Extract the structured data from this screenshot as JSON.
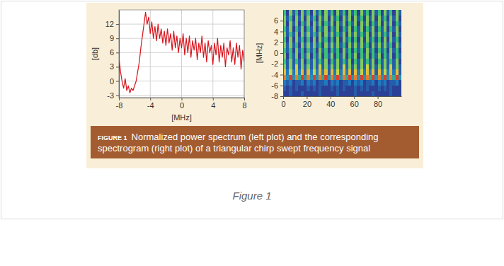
{
  "chart_data": [
    {
      "type": "line",
      "x_label": "[MHz]",
      "y_label": "[db]",
      "color": "#d7141c",
      "grid": true,
      "xlim": [
        -8,
        8
      ],
      "ylim": [
        -3.5,
        15
      ],
      "xticks": [
        -8,
        -4,
        0,
        4,
        8
      ],
      "yticks": [
        -3,
        0,
        3,
        6,
        9,
        12
      ],
      "x": [
        -8,
        -7.8,
        -7.6,
        -7.4,
        -7.2,
        -7,
        -6.8,
        -6.6,
        -6.4,
        -6.2,
        -6,
        -5.8,
        -5.6,
        -5.4,
        -5.2,
        -5,
        -4.8,
        -4.6,
        -4.4,
        -4.2,
        -4,
        -3.8,
        -3.6,
        -3.4,
        -3.2,
        -3,
        -2.8,
        -2.6,
        -2.4,
        -2.2,
        -2,
        -1.8,
        -1.6,
        -1.4,
        -1.2,
        -1,
        -0.8,
        -0.6,
        -0.4,
        -0.2,
        0,
        0.2,
        0.4,
        0.6,
        0.8,
        1,
        1.2,
        1.4,
        1.6,
        1.8,
        2,
        2.2,
        2.4,
        2.6,
        2.8,
        3,
        3.2,
        3.4,
        3.6,
        3.8,
        4,
        4.2,
        4.4,
        4.6,
        4.8,
        5,
        5.2,
        5.4,
        5.6,
        5.8,
        6,
        6.2,
        6.4,
        6.6,
        6.8,
        7,
        7.2,
        7.4,
        7.6,
        7.8,
        8
      ],
      "values": [
        5,
        2,
        0,
        -1.5,
        0.5,
        -2,
        -1,
        -2.5,
        -1.5,
        -2,
        -1,
        0,
        2,
        4,
        7,
        9.5,
        12,
        14.5,
        12,
        13.5,
        10,
        12.5,
        9,
        11.5,
        8.5,
        12,
        9,
        11,
        8,
        10.5,
        7.5,
        11,
        8,
        10,
        6.5,
        10.5,
        7,
        9.5,
        6,
        9,
        7,
        10,
        5.5,
        9,
        6,
        9.5,
        5,
        8.5,
        6.5,
        9,
        4.5,
        8,
        6,
        9.5,
        5,
        8,
        4,
        8.5,
        6,
        7.5,
        3.5,
        8,
        5.5,
        9,
        4,
        7.5,
        5,
        8,
        3,
        7,
        5.5,
        8.5,
        4,
        7,
        3.5,
        8,
        5,
        7.5,
        2.5,
        6.5,
        4
      ]
    },
    {
      "type": "heatmap",
      "y_label": "[MHz]",
      "grid": false,
      "xlim": [
        0,
        100
      ],
      "ylim": [
        -8,
        8
      ],
      "xticks": [
        0,
        20,
        40,
        60,
        80
      ],
      "yticks": [
        -8,
        -6,
        -4,
        -2,
        0,
        2,
        4,
        6
      ],
      "x_bins": [
        0,
        2.5,
        5,
        7.5,
        10,
        12.5,
        15,
        17.5,
        20,
        22.5,
        25,
        27.5,
        30,
        32.5,
        35,
        37.5,
        40,
        42.5,
        45,
        47.5,
        50,
        52.5,
        55,
        57.5,
        60,
        62.5,
        65,
        67.5,
        70,
        72.5,
        75,
        77.5,
        80,
        82.5,
        85,
        87.5,
        90,
        92.5,
        95,
        97.5,
        100
      ],
      "y_bins": [
        -8,
        -7,
        -6,
        -5,
        -4,
        -3,
        -2,
        -1,
        0,
        1,
        2,
        3,
        4,
        5,
        6,
        7,
        8
      ],
      "cells": [
        [
          0,
          0,
          1,
          0,
          0,
          0,
          1,
          0,
          0,
          0,
          0,
          0,
          1,
          0,
          0,
          0,
          0,
          0,
          1,
          0,
          0,
          0,
          0,
          0,
          1,
          0,
          0,
          0,
          0,
          0,
          1,
          0,
          0,
          0,
          0,
          0,
          1,
          0,
          0,
          0
        ],
        [
          1,
          0,
          1,
          0,
          1,
          0,
          0,
          0,
          1,
          0,
          1,
          0,
          1,
          0,
          0,
          0,
          1,
          0,
          1,
          0,
          1,
          0,
          0,
          0,
          1,
          0,
          1,
          0,
          1,
          0,
          0,
          0,
          1,
          0,
          1,
          0,
          1,
          0,
          0,
          0
        ],
        [
          2,
          1,
          2,
          0,
          1,
          1,
          2,
          0,
          2,
          1,
          2,
          0,
          1,
          1,
          2,
          0,
          2,
          1,
          2,
          0,
          1,
          1,
          2,
          0,
          2,
          1,
          2,
          0,
          1,
          1,
          2,
          0,
          2,
          1,
          2,
          0,
          1,
          1,
          2,
          0
        ],
        [
          9,
          3,
          10,
          3,
          9,
          4,
          10,
          3,
          9,
          3,
          10,
          3,
          9,
          4,
          10,
          3,
          9,
          3,
          10,
          3,
          9,
          4,
          10,
          3,
          9,
          3,
          10,
          3,
          9,
          4,
          10,
          3,
          9,
          3,
          10,
          3,
          9,
          4,
          10,
          3
        ],
        [
          8,
          2,
          7,
          2,
          8,
          2,
          8,
          1,
          8,
          2,
          7,
          2,
          8,
          2,
          8,
          1,
          8,
          2,
          7,
          2,
          8,
          2,
          8,
          1,
          8,
          2,
          7,
          2,
          8,
          2,
          8,
          1,
          8,
          2,
          7,
          2,
          8,
          2,
          8,
          1
        ],
        [
          6,
          1,
          6,
          1,
          7,
          1,
          6,
          1,
          6,
          1,
          6,
          1,
          7,
          1,
          6,
          1,
          6,
          1,
          6,
          1,
          7,
          1,
          6,
          1,
          6,
          1,
          6,
          1,
          7,
          1,
          6,
          1,
          6,
          1,
          6,
          1,
          7,
          1,
          6,
          1
        ],
        [
          5,
          1,
          6,
          1,
          5,
          1,
          6,
          0,
          5,
          1,
          6,
          1,
          5,
          1,
          6,
          0,
          5,
          1,
          6,
          1,
          5,
          1,
          6,
          0,
          5,
          1,
          6,
          1,
          5,
          1,
          6,
          0,
          5,
          1,
          6,
          1,
          5,
          1,
          6,
          0
        ],
        [
          6,
          0,
          5,
          1,
          6,
          0,
          5,
          1,
          6,
          0,
          5,
          1,
          6,
          0,
          5,
          1,
          6,
          0,
          5,
          1,
          6,
          0,
          5,
          1,
          6,
          0,
          5,
          1,
          6,
          0,
          5,
          1,
          6,
          0,
          5,
          1,
          6,
          0,
          5,
          1
        ],
        [
          5,
          1,
          5,
          0,
          6,
          1,
          5,
          0,
          5,
          1,
          5,
          0,
          6,
          1,
          5,
          0,
          5,
          1,
          5,
          0,
          6,
          1,
          5,
          0,
          5,
          1,
          5,
          0,
          6,
          1,
          5,
          0,
          5,
          1,
          5,
          0,
          6,
          1,
          5,
          0
        ],
        [
          6,
          1,
          6,
          1,
          5,
          0,
          6,
          1,
          6,
          1,
          6,
          1,
          5,
          0,
          6,
          1,
          6,
          1,
          6,
          1,
          5,
          0,
          6,
          1,
          6,
          1,
          6,
          1,
          5,
          0,
          6,
          1,
          6,
          1,
          6,
          1,
          5,
          0,
          6,
          1
        ],
        [
          5,
          0,
          6,
          0,
          6,
          1,
          5,
          0,
          5,
          0,
          6,
          0,
          6,
          1,
          5,
          0,
          5,
          0,
          6,
          0,
          6,
          1,
          5,
          0,
          5,
          0,
          6,
          0,
          6,
          1,
          5,
          0,
          5,
          0,
          6,
          0,
          6,
          1,
          5,
          0
        ],
        [
          6,
          1,
          5,
          1,
          6,
          0,
          6,
          1,
          6,
          1,
          5,
          1,
          6,
          0,
          6,
          1,
          6,
          1,
          5,
          1,
          6,
          0,
          6,
          1,
          6,
          1,
          5,
          1,
          6,
          0,
          6,
          1,
          6,
          1,
          5,
          1,
          6,
          0,
          6,
          1
        ],
        [
          5,
          1,
          6,
          0,
          5,
          1,
          6,
          0,
          5,
          1,
          6,
          0,
          5,
          1,
          6,
          0,
          5,
          1,
          6,
          0,
          5,
          1,
          6,
          0,
          5,
          1,
          6,
          0,
          5,
          1,
          6,
          0,
          5,
          1,
          6,
          0,
          5,
          1,
          6,
          0
        ],
        [
          6,
          0,
          6,
          1,
          6,
          0,
          5,
          1,
          6,
          0,
          6,
          1,
          6,
          0,
          5,
          1,
          6,
          0,
          6,
          1,
          6,
          0,
          5,
          1,
          6,
          0,
          6,
          1,
          6,
          0,
          5,
          1,
          6,
          0,
          6,
          1,
          6,
          0,
          5,
          1
        ],
        [
          6,
          1,
          5,
          0,
          6,
          1,
          6,
          0,
          6,
          1,
          5,
          0,
          6,
          1,
          6,
          0,
          6,
          1,
          5,
          0,
          6,
          1,
          6,
          0,
          6,
          1,
          5,
          0,
          6,
          1,
          6,
          0,
          6,
          1,
          5,
          0,
          6,
          1,
          6,
          0
        ],
        [
          5,
          0,
          6,
          1,
          5,
          0,
          6,
          1,
          5,
          0,
          6,
          1,
          5,
          0,
          6,
          1,
          5,
          0,
          6,
          1,
          5,
          0,
          6,
          1,
          5,
          0,
          6,
          1,
          5,
          0,
          6,
          1,
          5,
          0,
          6,
          1,
          5,
          0,
          6,
          1
        ]
      ]
    }
  ],
  "caption": {
    "label": "FIGURE 1",
    "text": "Normalized power spectrum (left plot) and the corresponding spectrogram (right plot) of a triangular chirp swept frequency signal"
  },
  "figure_label": "Figure 1"
}
